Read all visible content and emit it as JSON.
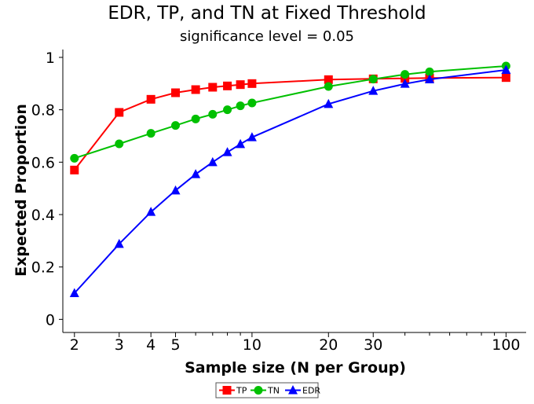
{
  "chart_data": {
    "type": "line",
    "title": "EDR, TP, and TN at Fixed Threshold",
    "subtitle": "significance level = 0.05",
    "xlabel": "Sample size (N per Group)",
    "ylabel": "Expected Proportion",
    "x_scale": "log",
    "xlim": [
      1.8,
      120
    ],
    "ylim": [
      -0.05,
      1.03
    ],
    "x_ticks": [
      2,
      3,
      4,
      5,
      10,
      20,
      30,
      100
    ],
    "x_tick_labels": [
      "2",
      "3",
      "4",
      "5",
      "10",
      "20",
      "30",
      "100"
    ],
    "x_minor_ticks": [
      6,
      7,
      8,
      9,
      40,
      50,
      60,
      70,
      80,
      90
    ],
    "y_ticks": [
      0,
      0.2,
      0.4,
      0.6,
      0.8,
      1
    ],
    "y_tick_labels": [
      "0",
      "0.2",
      "0.4",
      "0.6",
      "0.8",
      "1"
    ],
    "grid": false,
    "legend_position": "bottom-center",
    "series": [
      {
        "name": "TP",
        "color": "#ff0000",
        "marker": "square",
        "x": [
          2,
          3,
          4,
          5,
          6,
          7,
          8,
          9,
          10,
          20,
          30,
          40,
          50,
          100
        ],
        "y": [
          0.57,
          0.79,
          0.84,
          0.865,
          0.877,
          0.886,
          0.891,
          0.896,
          0.9,
          0.915,
          0.918,
          0.92,
          0.921,
          0.923
        ]
      },
      {
        "name": "TN",
        "color": "#00c000",
        "marker": "circle",
        "x": [
          2,
          3,
          4,
          5,
          6,
          7,
          8,
          9,
          10,
          20,
          30,
          40,
          50,
          100
        ],
        "y": [
          0.615,
          0.67,
          0.71,
          0.74,
          0.765,
          0.783,
          0.8,
          0.815,
          0.826,
          0.889,
          0.917,
          0.935,
          0.945,
          0.967
        ]
      },
      {
        "name": "EDR",
        "color": "#0000ff",
        "marker": "triangle",
        "x": [
          2,
          3,
          4,
          5,
          6,
          7,
          8,
          9,
          10,
          20,
          30,
          40,
          50,
          100
        ],
        "y": [
          0.1,
          0.288,
          0.41,
          0.492,
          0.554,
          0.6,
          0.638,
          0.669,
          0.695,
          0.822,
          0.872,
          0.899,
          0.916,
          0.952
        ]
      }
    ]
  }
}
